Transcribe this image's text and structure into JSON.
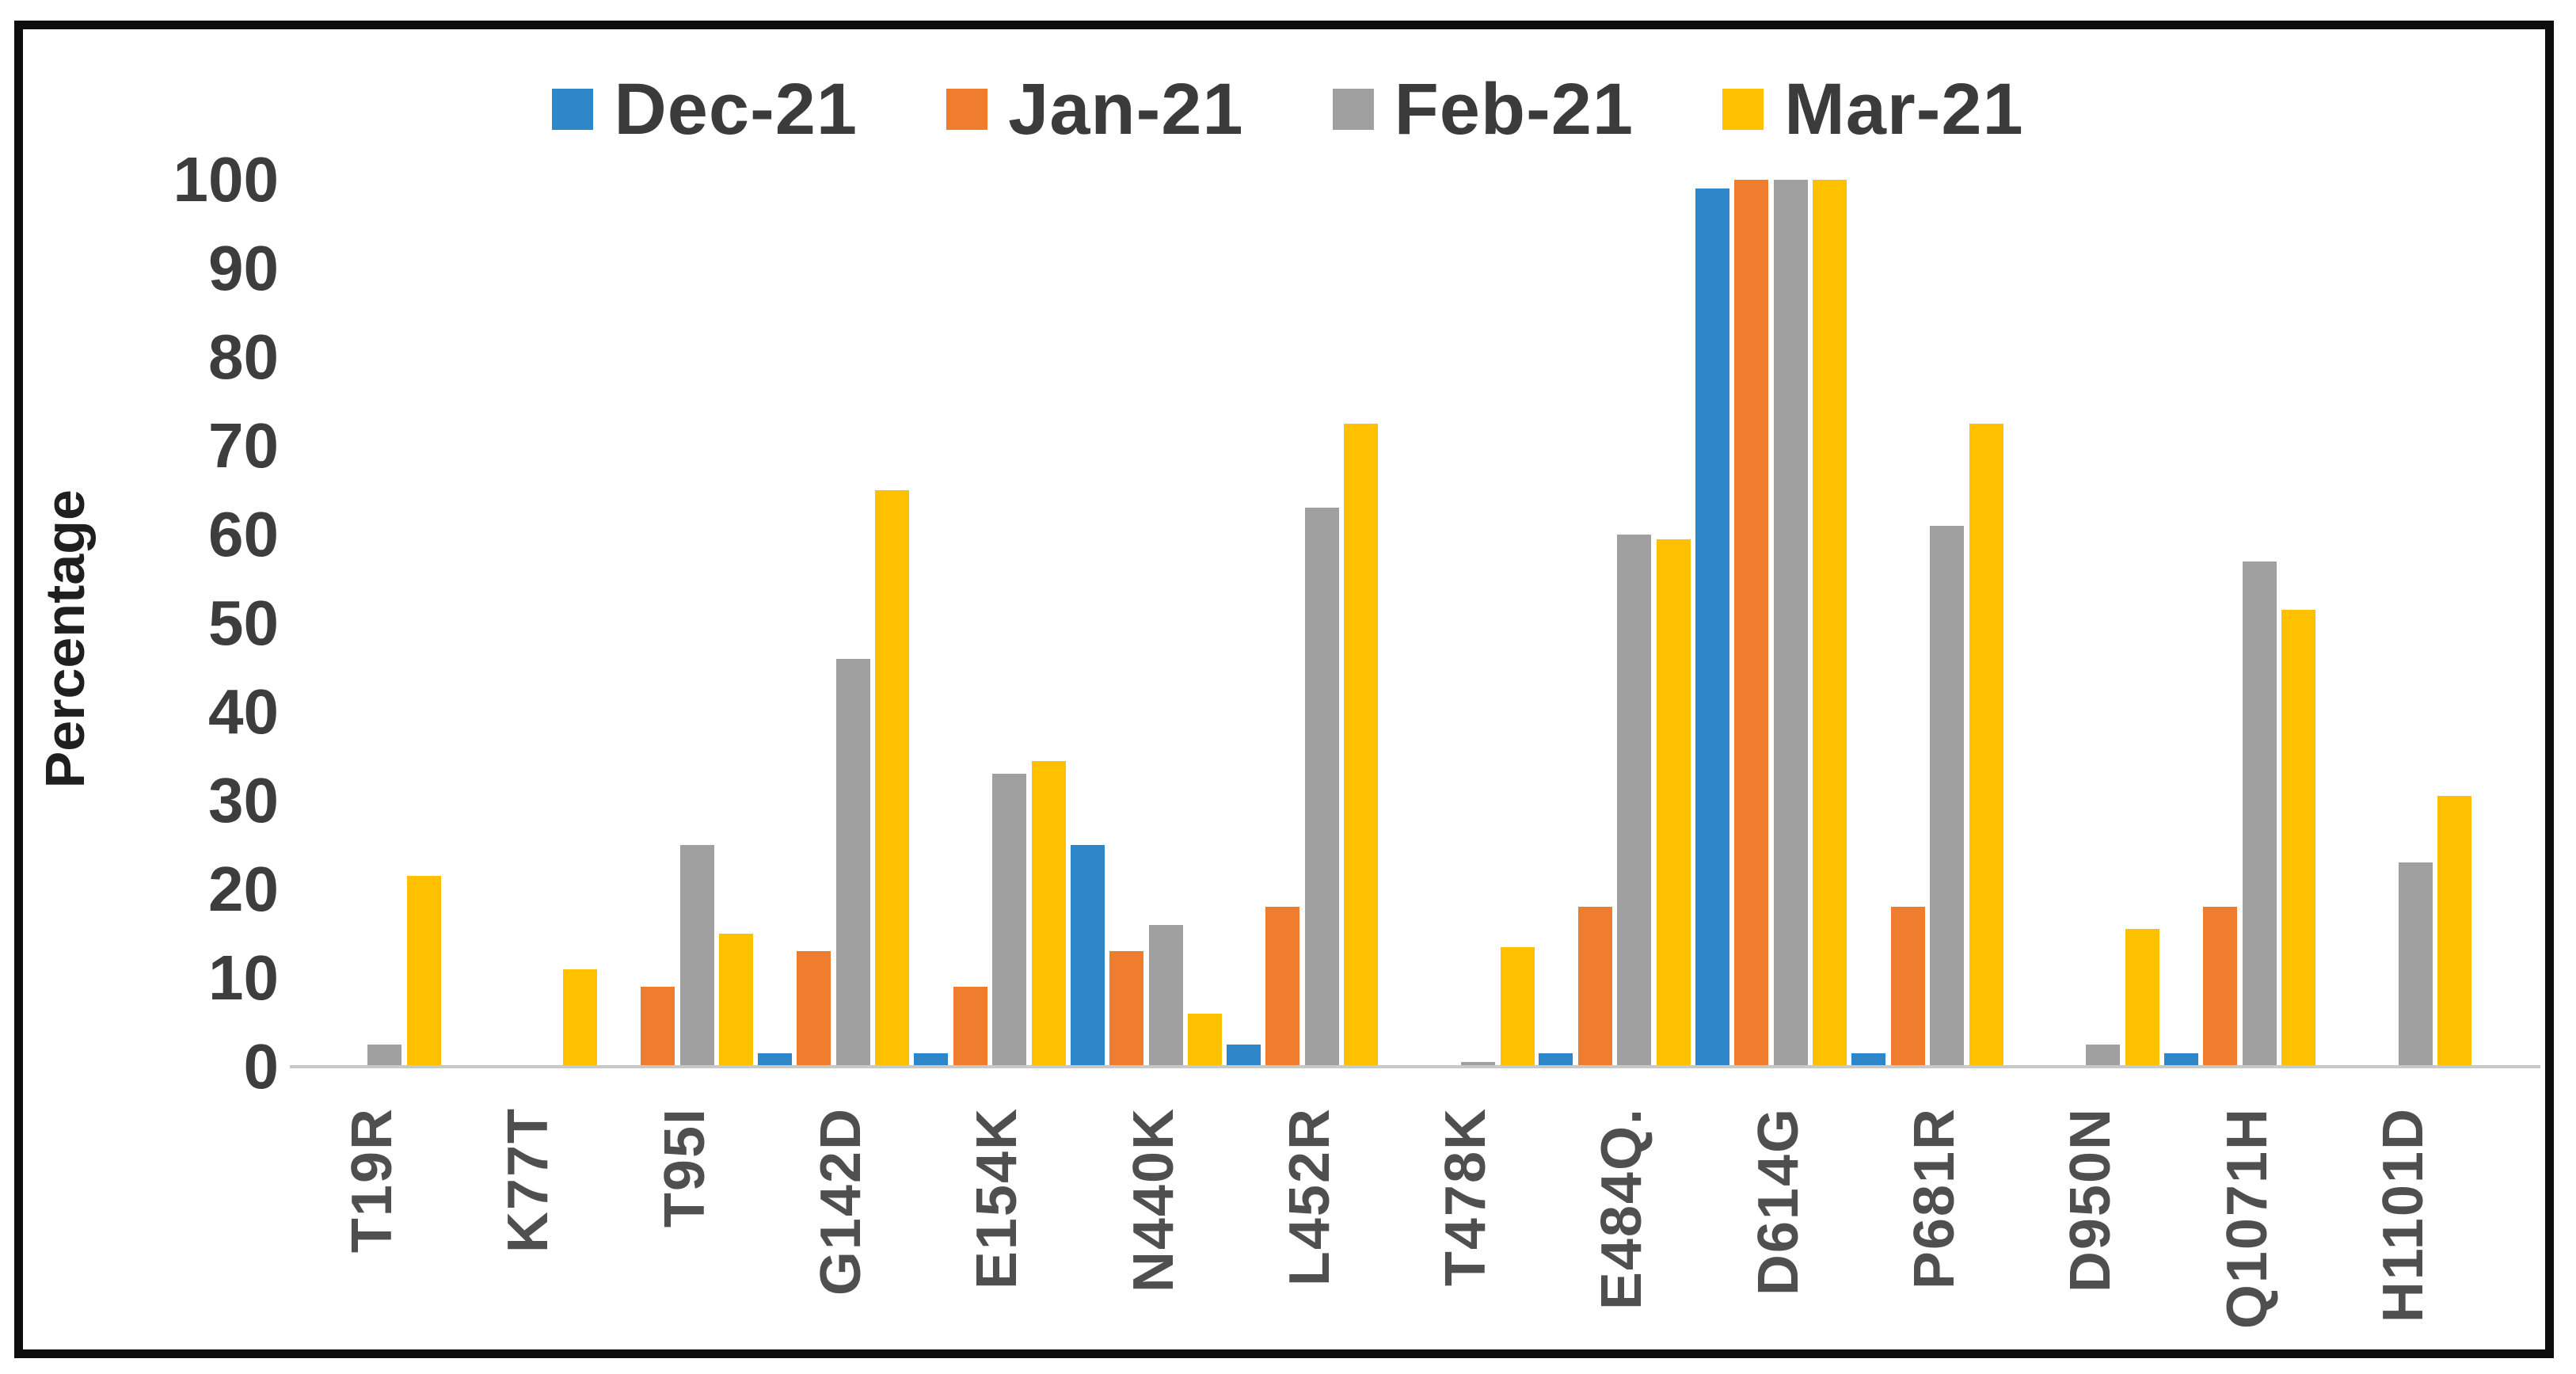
{
  "figure": {
    "background": "#ffffff",
    "border_color": "#0d0d0d"
  },
  "chart_data": {
    "type": "bar",
    "title": "",
    "xlabel": "",
    "ylabel": "Percentage",
    "ylim": [
      0,
      100
    ],
    "ytick_step": 10,
    "yticks": [
      0,
      10,
      20,
      30,
      40,
      50,
      60,
      70,
      80,
      90,
      100
    ],
    "grid": false,
    "legend_position": "top-center",
    "categories": [
      "T19R",
      "K77T",
      "T95I",
      "G142D",
      "E154K",
      "N440K",
      "L452R",
      "T478K",
      "E484Q.",
      "D614G",
      "P681R",
      "D950N",
      "Q1071H",
      "H1101D"
    ],
    "series": [
      {
        "name": "Dec-21",
        "color": "#2E87C8",
        "values": [
          0,
          0,
          0,
          1.5,
          1.5,
          25,
          2.5,
          0,
          1.5,
          99,
          1.5,
          0,
          1.5,
          0
        ]
      },
      {
        "name": "Jan-21",
        "color": "#F07D2E",
        "values": [
          0,
          0,
          9,
          13,
          9,
          13,
          18,
          0,
          18,
          100,
          18,
          0,
          18,
          0
        ]
      },
      {
        "name": "Feb-21",
        "color": "#A0A0A0",
        "values": [
          2.5,
          0,
          25,
          46,
          33,
          16,
          63,
          0.5,
          60,
          100,
          61,
          2.5,
          57,
          23
        ]
      },
      {
        "name": "Mar-21",
        "color": "#FFC000",
        "values": [
          21.5,
          11,
          15,
          65,
          34.5,
          6,
          72.5,
          13.5,
          59.5,
          100,
          72.5,
          15.5,
          51.5,
          30.5
        ]
      }
    ]
  }
}
